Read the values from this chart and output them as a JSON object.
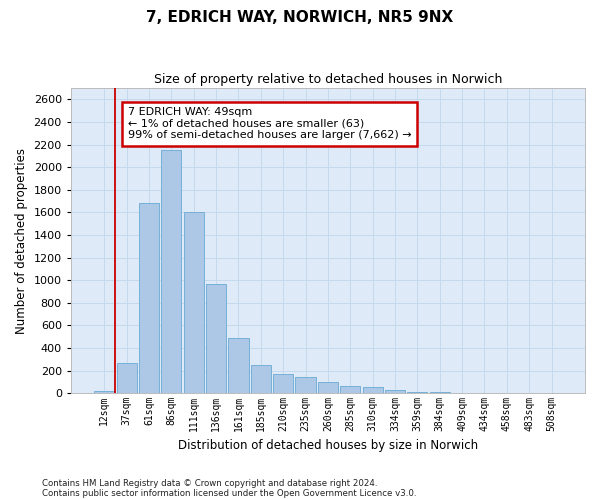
{
  "title": "7, EDRICH WAY, NORWICH, NR5 9NX",
  "subtitle": "Size of property relative to detached houses in Norwich",
  "xlabel": "Distribution of detached houses by size in Norwich",
  "ylabel": "Number of detached properties",
  "bar_color": "#adc8e6",
  "bar_edge_color": "#6aaad4",
  "grid_color": "#c5d9ec",
  "background_color": "#deeaf7",
  "categories": [
    "12sqm",
    "37sqm",
    "61sqm",
    "86sqm",
    "111sqm",
    "136sqm",
    "161sqm",
    "185sqm",
    "210sqm",
    "235sqm",
    "260sqm",
    "285sqm",
    "310sqm",
    "334sqm",
    "359sqm",
    "384sqm",
    "409sqm",
    "434sqm",
    "458sqm",
    "483sqm",
    "508sqm"
  ],
  "values": [
    18,
    270,
    1680,
    2150,
    1600,
    970,
    490,
    250,
    170,
    145,
    100,
    65,
    50,
    25,
    12,
    10,
    5,
    2,
    3,
    1,
    2
  ],
  "ylim": [
    0,
    2700
  ],
  "yticks": [
    0,
    200,
    400,
    600,
    800,
    1000,
    1200,
    1400,
    1600,
    1800,
    2000,
    2200,
    2400,
    2600
  ],
  "property_line_x": 0.5,
  "annotation_text": "7 EDRICH WAY: 49sqm\n← 1% of detached houses are smaller (63)\n99% of semi-detached houses are larger (7,662) →",
  "annotation_box_color": "#ffffff",
  "annotation_box_edge": "#cc0000",
  "footer_line1": "Contains HM Land Registry data © Crown copyright and database right 2024.",
  "footer_line2": "Contains public sector information licensed under the Open Government Licence v3.0."
}
